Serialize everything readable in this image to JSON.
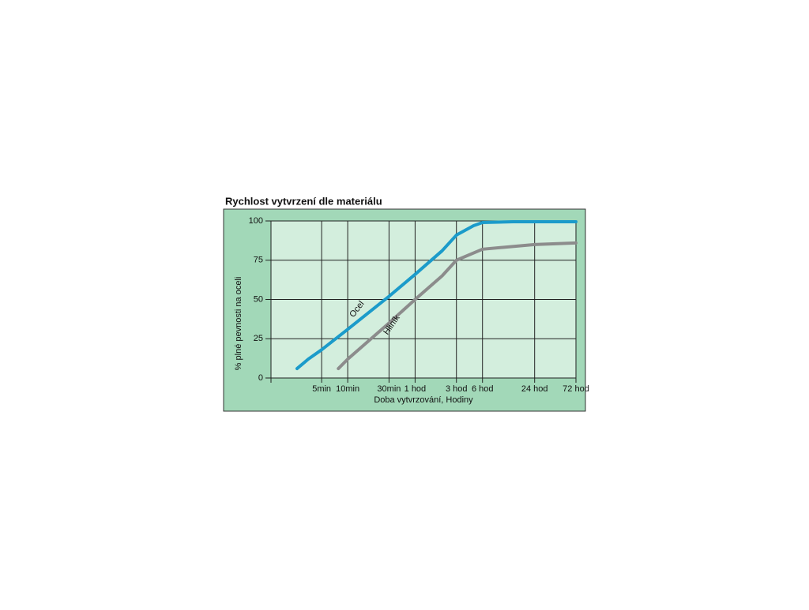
{
  "chart_data": {
    "type": "line",
    "title": "Rychlost vytvrzení dle materiálu",
    "x_label": "Doba vytvrzování, Hodiny",
    "y_label": "% plné pevnosti na oceli",
    "x_scale": "log",
    "xlim": [
      1.3,
      4320
    ],
    "xticks": [
      {
        "value": 5,
        "label": "5min"
      },
      {
        "value": 10,
        "label": "10min"
      },
      {
        "value": 30,
        "label": "30min"
      },
      {
        "value": 60,
        "label": "1 hod"
      },
      {
        "value": 180,
        "label": "3 hod"
      },
      {
        "value": 360,
        "label": "6 hod"
      },
      {
        "value": 1440,
        "label": "24 hod"
      },
      {
        "value": 4320,
        "label": "72 hod"
      }
    ],
    "ylim": [
      0,
      100
    ],
    "yticks": [
      0,
      25,
      50,
      75,
      100
    ],
    "grid": true,
    "series": [
      {
        "name": "Ocel",
        "color": "#1b9bca",
        "x": [
          2.6,
          3.5,
          5,
          10,
          30,
          60,
          123,
          180,
          284,
          360,
          810,
          4320
        ],
        "values": [
          6,
          12,
          18,
          31,
          52,
          66,
          81,
          91,
          97,
          99,
          99.5,
          99.5
        ]
      },
      {
        "name": "Hliník",
        "color": "#8c8c8c",
        "x": [
          7.8,
          10,
          30,
          60,
          123,
          180,
          360,
          1440,
          4320
        ],
        "values": [
          6,
          12,
          35,
          50,
          65,
          75,
          82,
          85,
          86
        ]
      }
    ]
  }
}
